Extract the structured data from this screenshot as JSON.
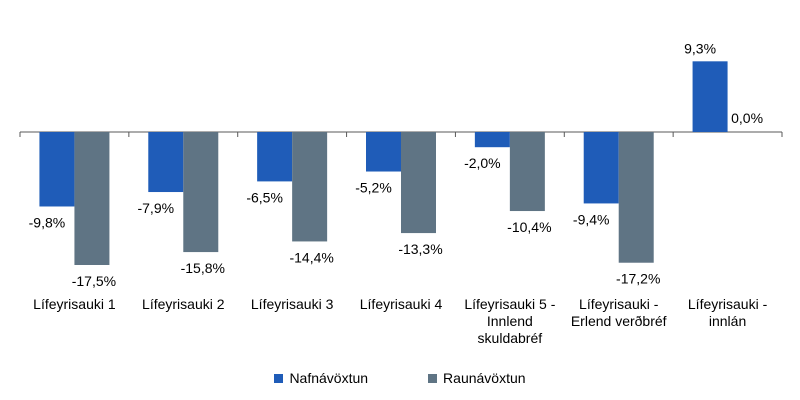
{
  "chart_data": {
    "type": "bar",
    "title": "",
    "xlabel": "",
    "ylabel": "",
    "ylim": [
      -20,
      10
    ],
    "grid": false,
    "legend_position": "bottom",
    "categories": [
      [
        "Lífeyrisauki 1"
      ],
      [
        "Lífeyrisauki 2"
      ],
      [
        "Lífeyrisauki 3"
      ],
      [
        "Lífeyrisauki 4"
      ],
      [
        "Lífeyrisauki 5 -",
        "Innlend",
        "skuldabréf"
      ],
      [
        "Lífeyrisauki -",
        "Erlend verðbréf"
      ],
      [
        "Lífeyrisauki -",
        "innlán"
      ]
    ],
    "series": [
      {
        "name": "Nafnávöxtun",
        "color": "#1F5CB8",
        "values": [
          -9.8,
          -7.9,
          -6.5,
          -5.2,
          -2.0,
          -9.4,
          9.3
        ],
        "labels": [
          "-9,8%",
          "-7,9%",
          "-6,5%",
          "-5,2%",
          "-2,0%",
          "-9,4%",
          "9,3%"
        ]
      },
      {
        "name": "Raunávöxtun",
        "color": "#5F7484",
        "values": [
          -17.5,
          -15.8,
          -14.4,
          -13.3,
          -10.4,
          -17.2,
          0.0
        ],
        "labels": [
          "-17,5%",
          "-15,8%",
          "-14,4%",
          "-13,3%",
          "-10,4%",
          "-17,2%",
          "0,0%"
        ]
      }
    ]
  },
  "legend": {
    "items": [
      {
        "label": "Nafnávöxtun",
        "color": "#1F5CB8"
      },
      {
        "label": "Raunávöxtun",
        "color": "#5F7484"
      }
    ]
  }
}
